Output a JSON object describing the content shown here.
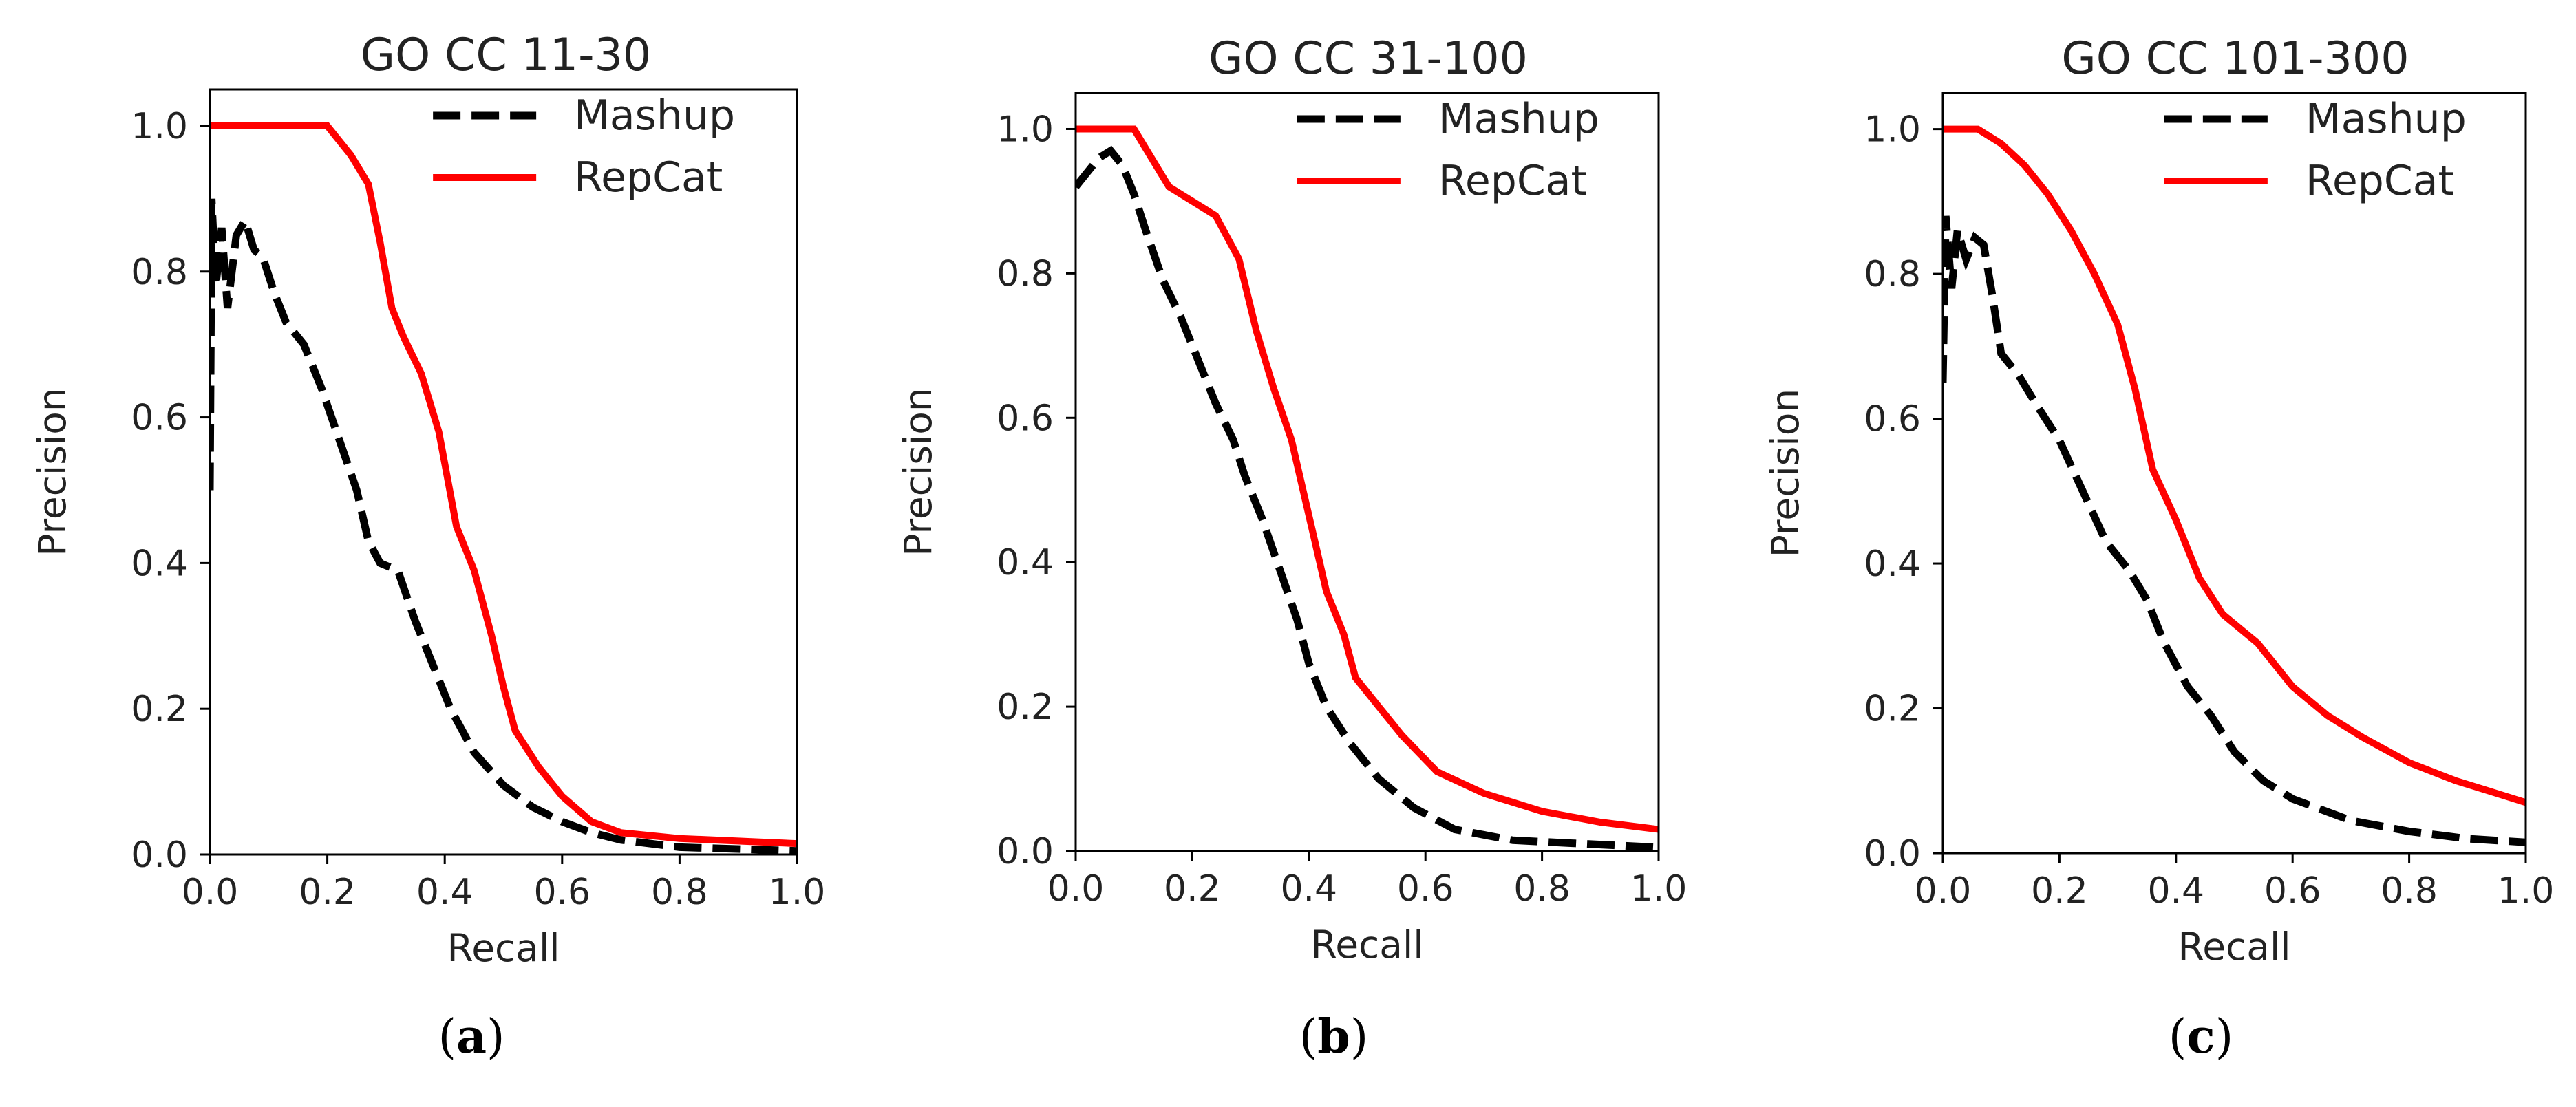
{
  "figure": {
    "colors": {
      "mashup": "#000000",
      "repcat": "#ff0000",
      "axis": "#000000",
      "background": "#ffffff"
    }
  },
  "chart_data": [
    {
      "type": "line",
      "panel_label": "a",
      "title": "GO CC 11-30",
      "xlabel": "Recall",
      "ylabel": "Precision",
      "xlim": [
        0,
        1
      ],
      "ylim": [
        0,
        1.05
      ],
      "xticks": [
        "0.0",
        "0.2",
        "0.4",
        "0.6",
        "0.8",
        "1.0"
      ],
      "yticks": [
        "0.0",
        "0.2",
        "0.4",
        "0.6",
        "0.8",
        "1.0"
      ],
      "grid": false,
      "legend_position": "top-right",
      "series": [
        {
          "name": "Mashup",
          "style": "dashed",
          "color": "#000000",
          "points": [
            [
              0,
              0.5
            ],
            [
              0.003,
              0.9
            ],
            [
              0.01,
              0.78
            ],
            [
              0.02,
              0.86
            ],
            [
              0.03,
              0.75
            ],
            [
              0.045,
              0.85
            ],
            [
              0.06,
              0.87
            ],
            [
              0.075,
              0.83
            ],
            [
              0.09,
              0.82
            ],
            [
              0.11,
              0.77
            ],
            [
              0.13,
              0.73
            ],
            [
              0.16,
              0.7
            ],
            [
              0.19,
              0.64
            ],
            [
              0.22,
              0.57
            ],
            [
              0.25,
              0.5
            ],
            [
              0.27,
              0.43
            ],
            [
              0.29,
              0.4
            ],
            [
              0.32,
              0.39
            ],
            [
              0.35,
              0.32
            ],
            [
              0.38,
              0.26
            ],
            [
              0.41,
              0.2
            ],
            [
              0.45,
              0.14
            ],
            [
              0.5,
              0.095
            ],
            [
              0.55,
              0.065
            ],
            [
              0.6,
              0.045
            ],
            [
              0.65,
              0.03
            ],
            [
              0.7,
              0.02
            ],
            [
              0.8,
              0.01
            ],
            [
              1.0,
              0.005
            ]
          ]
        },
        {
          "name": "RepCat",
          "style": "solid",
          "color": "#ff0000",
          "points": [
            [
              0,
              1.0
            ],
            [
              0.2,
              1.0
            ],
            [
              0.24,
              0.96
            ],
            [
              0.27,
              0.92
            ],
            [
              0.29,
              0.84
            ],
            [
              0.31,
              0.75
            ],
            [
              0.33,
              0.71
            ],
            [
              0.36,
              0.66
            ],
            [
              0.39,
              0.58
            ],
            [
              0.42,
              0.45
            ],
            [
              0.45,
              0.39
            ],
            [
              0.48,
              0.3
            ],
            [
              0.5,
              0.23
            ],
            [
              0.52,
              0.17
            ],
            [
              0.56,
              0.12
            ],
            [
              0.6,
              0.08
            ],
            [
              0.65,
              0.045
            ],
            [
              0.7,
              0.03
            ],
            [
              0.8,
              0.022
            ],
            [
              1.0,
              0.015
            ]
          ]
        }
      ]
    },
    {
      "type": "line",
      "panel_label": "b",
      "title": "GO CC 31-100",
      "xlabel": "Recall",
      "ylabel": "Precision",
      "xlim": [
        0,
        1
      ],
      "ylim": [
        0,
        1.05
      ],
      "xticks": [
        "0.0",
        "0.2",
        "0.4",
        "0.6",
        "0.8",
        "1.0"
      ],
      "yticks": [
        "0.0",
        "0.2",
        "0.4",
        "0.6",
        "0.8",
        "1.0"
      ],
      "grid": false,
      "legend_position": "top-right",
      "series": [
        {
          "name": "Mashup",
          "style": "dashed",
          "color": "#000000",
          "points": [
            [
              0,
              0.92
            ],
            [
              0.02,
              0.94
            ],
            [
              0.04,
              0.96
            ],
            [
              0.06,
              0.97
            ],
            [
              0.08,
              0.95
            ],
            [
              0.1,
              0.91
            ],
            [
              0.12,
              0.86
            ],
            [
              0.15,
              0.79
            ],
            [
              0.18,
              0.74
            ],
            [
              0.21,
              0.68
            ],
            [
              0.24,
              0.62
            ],
            [
              0.27,
              0.57
            ],
            [
              0.29,
              0.52
            ],
            [
              0.32,
              0.46
            ],
            [
              0.35,
              0.39
            ],
            [
              0.38,
              0.32
            ],
            [
              0.4,
              0.26
            ],
            [
              0.43,
              0.2
            ],
            [
              0.47,
              0.15
            ],
            [
              0.52,
              0.1
            ],
            [
              0.58,
              0.06
            ],
            [
              0.65,
              0.03
            ],
            [
              0.75,
              0.015
            ],
            [
              1.0,
              0.005
            ]
          ]
        },
        {
          "name": "RepCat",
          "style": "solid",
          "color": "#ff0000",
          "points": [
            [
              0,
              1.0
            ],
            [
              0.1,
              1.0
            ],
            [
              0.13,
              0.96
            ],
            [
              0.16,
              0.92
            ],
            [
              0.2,
              0.9
            ],
            [
              0.24,
              0.88
            ],
            [
              0.28,
              0.82
            ],
            [
              0.31,
              0.72
            ],
            [
              0.34,
              0.64
            ],
            [
              0.37,
              0.57
            ],
            [
              0.39,
              0.5
            ],
            [
              0.41,
              0.43
            ],
            [
              0.43,
              0.36
            ],
            [
              0.46,
              0.3
            ],
            [
              0.48,
              0.24
            ],
            [
              0.52,
              0.2
            ],
            [
              0.56,
              0.16
            ],
            [
              0.62,
              0.11
            ],
            [
              0.7,
              0.08
            ],
            [
              0.8,
              0.055
            ],
            [
              0.9,
              0.04
            ],
            [
              1.0,
              0.03
            ]
          ]
        }
      ]
    },
    {
      "type": "line",
      "panel_label": "c",
      "title": "GO CC 101-300",
      "xlabel": "Recall",
      "ylabel": "Precision",
      "xlim": [
        0,
        1
      ],
      "ylim": [
        0,
        1.05
      ],
      "xticks": [
        "0.0",
        "0.2",
        "0.4",
        "0.6",
        "0.8",
        "1.0"
      ],
      "yticks": [
        "0.0",
        "0.2",
        "0.4",
        "0.6",
        "0.8",
        "1.0"
      ],
      "grid": false,
      "legend_position": "top-right",
      "series": [
        {
          "name": "Mashup",
          "style": "dashed",
          "color": "#000000",
          "points": [
            [
              0,
              0.65
            ],
            [
              0.005,
              0.88
            ],
            [
              0.015,
              0.78
            ],
            [
              0.025,
              0.86
            ],
            [
              0.04,
              0.82
            ],
            [
              0.055,
              0.85
            ],
            [
              0.07,
              0.84
            ],
            [
              0.085,
              0.77
            ],
            [
              0.1,
              0.69
            ],
            [
              0.13,
              0.66
            ],
            [
              0.16,
              0.62
            ],
            [
              0.2,
              0.57
            ],
            [
              0.24,
              0.5
            ],
            [
              0.28,
              0.43
            ],
            [
              0.32,
              0.39
            ],
            [
              0.35,
              0.35
            ],
            [
              0.38,
              0.29
            ],
            [
              0.42,
              0.23
            ],
            [
              0.46,
              0.19
            ],
            [
              0.5,
              0.14
            ],
            [
              0.55,
              0.1
            ],
            [
              0.6,
              0.075
            ],
            [
              0.7,
              0.045
            ],
            [
              0.8,
              0.03
            ],
            [
              0.9,
              0.02
            ],
            [
              1.0,
              0.015
            ]
          ]
        },
        {
          "name": "RepCat",
          "style": "solid",
          "color": "#ff0000",
          "points": [
            [
              0,
              1.0
            ],
            [
              0.06,
              1.0
            ],
            [
              0.1,
              0.98
            ],
            [
              0.14,
              0.95
            ],
            [
              0.18,
              0.91
            ],
            [
              0.22,
              0.86
            ],
            [
              0.26,
              0.8
            ],
            [
              0.3,
              0.73
            ],
            [
              0.33,
              0.64
            ],
            [
              0.36,
              0.53
            ],
            [
              0.4,
              0.46
            ],
            [
              0.44,
              0.38
            ],
            [
              0.48,
              0.33
            ],
            [
              0.54,
              0.29
            ],
            [
              0.6,
              0.23
            ],
            [
              0.66,
              0.19
            ],
            [
              0.72,
              0.16
            ],
            [
              0.8,
              0.125
            ],
            [
              0.88,
              0.1
            ],
            [
              0.94,
              0.085
            ],
            [
              1.0,
              0.07
            ]
          ]
        }
      ]
    }
  ]
}
